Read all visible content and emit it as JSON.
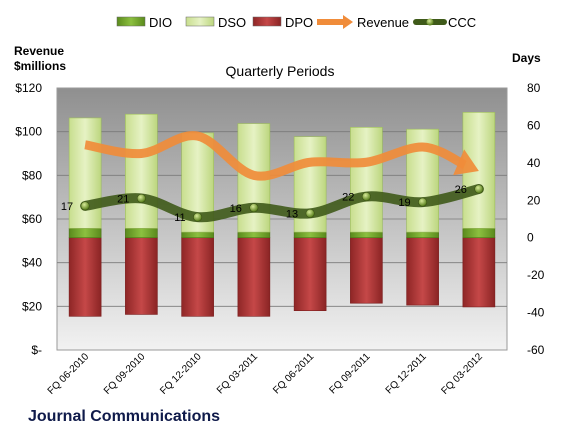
{
  "chart_data": {
    "type": "bar",
    "title": "Quarterly Periods",
    "footer_title": "Journal Communications",
    "left_axis_title": [
      "Revenue",
      "$millions"
    ],
    "right_axis_title": "Days",
    "categories": [
      "FQ 06-2010",
      "FQ 09-2010",
      "FQ 12-2010",
      "FQ 03-2011",
      "FQ 06-2011",
      "FQ 09-2011",
      "FQ 12-2011",
      "FQ 03-2012"
    ],
    "left_axis": {
      "min": 0,
      "max": 120,
      "step": 20,
      "tick_labels": [
        "$-",
        "$20",
        "$40",
        "$60",
        "$80",
        "$100",
        "$120"
      ]
    },
    "right_axis": {
      "min": -60,
      "max": 80,
      "step": 20,
      "tick_labels": [
        "-60",
        "-40",
        "-20",
        "0",
        "20",
        "40",
        "60",
        "80"
      ]
    },
    "legend": {
      "position": "top",
      "items": [
        {
          "name": "DIO",
          "kind": "bar",
          "color": "#6e9e2a"
        },
        {
          "name": "DSO",
          "kind": "bar",
          "color": "#d6e8a8"
        },
        {
          "name": "DPO",
          "kind": "bar",
          "color": "#b23a3a"
        },
        {
          "name": "Revenue",
          "kind": "arrow",
          "color": "#f08c3a"
        },
        {
          "name": "CCC",
          "kind": "line",
          "color": "#3f5a1a"
        }
      ]
    },
    "series": [
      {
        "name": "DIO",
        "axis": "right",
        "values": [
          5,
          5,
          3,
          3,
          3,
          3,
          3,
          5
        ]
      },
      {
        "name": "DSO",
        "axis": "right",
        "values": [
          59,
          61,
          53,
          58,
          51,
          56,
          55,
          62
        ]
      },
      {
        "name": "DPO",
        "axis": "right",
        "values": [
          -42,
          -41,
          -42,
          -42,
          -39,
          -35,
          -36,
          -37
        ]
      },
      {
        "name": "Revenue",
        "axis": "left",
        "values": [
          94,
          90,
          98,
          80,
          86,
          86,
          93,
          82
        ]
      },
      {
        "name": "CCC",
        "axis": "right",
        "values": [
          17,
          21,
          11,
          16,
          13,
          22,
          19,
          26
        ],
        "labels": [
          "17",
          "21",
          "11",
          "16",
          "13",
          "22",
          "19",
          "26"
        ]
      }
    ],
    "colors": {
      "plot_bg_top": "#8f8f8f",
      "plot_bg_bottom": "#f2f2f2",
      "grid": "#7a7a7a"
    },
    "grid": true
  }
}
